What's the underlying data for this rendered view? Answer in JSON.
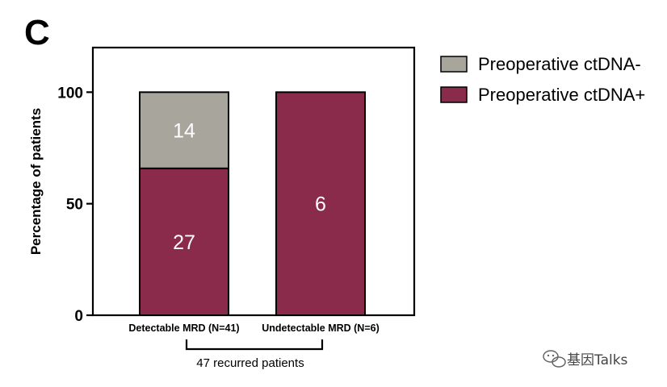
{
  "panel_label": "C",
  "colors": {
    "negative": "#a8a59d",
    "positive": "#8a2b4b",
    "frame": "#000000"
  },
  "chart_data": {
    "type": "bar",
    "stacked": true,
    "categories": [
      "Detectable MRD (N=41)",
      "Undetectable MRD (N=6)"
    ],
    "series": [
      {
        "name": "Preoperative ctDNA+",
        "values": [
          65.85,
          100
        ],
        "counts": [
          "27",
          "6"
        ],
        "color": "#8a2b4b"
      },
      {
        "name": "Preoperative ctDNA-",
        "values": [
          34.15,
          0
        ],
        "counts": [
          "14",
          ""
        ],
        "color": "#a8a59d"
      }
    ],
    "ylabel": "Percentage of patients",
    "xlabel": "",
    "ylim": [
      0,
      120
    ],
    "yticks": [
      "0",
      "50",
      "100"
    ],
    "grid": false,
    "legend_position": "right",
    "legend_order": [
      "Preoperative ctDNA-",
      "Preoperative ctDNA+"
    ]
  },
  "bracket_label": "47 recurred patients",
  "watermark": "基因Talks",
  "watermark_icon": "wechat-icon"
}
